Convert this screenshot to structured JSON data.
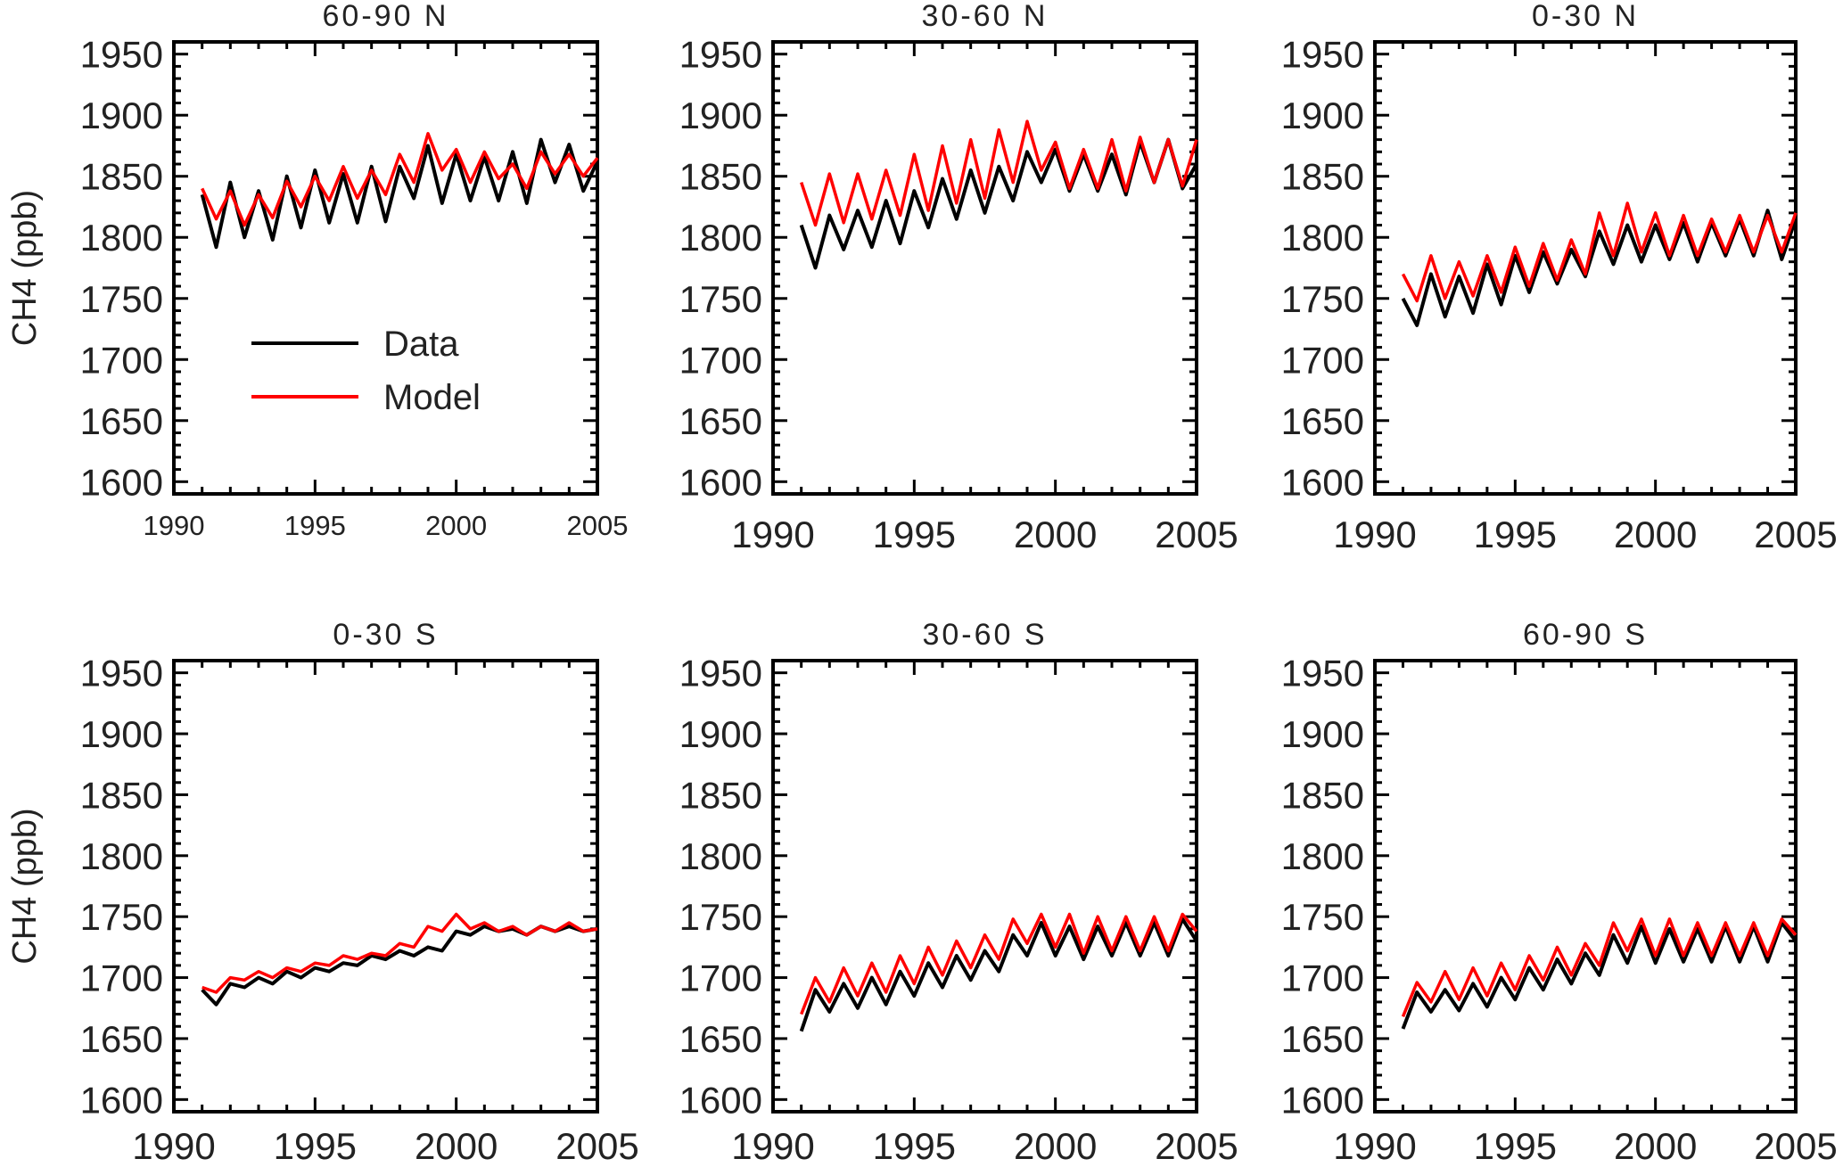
{
  "chart_data": [
    {
      "type": "line",
      "title": "60-90 N",
      "ylabel": "CH4 (ppb)",
      "xlim": [
        1990,
        2005
      ],
      "ylim": [
        1590,
        1960
      ],
      "xticks": [
        "1990",
        "1995",
        "2000",
        "2005"
      ],
      "yticks": [
        "1600",
        "1650",
        "1700",
        "1750",
        "1800",
        "1850",
        "1900",
        "1950"
      ],
      "x_start": 1991,
      "x_step": 0.5,
      "legend": {
        "placement": "center-left",
        "entries": [
          "Data",
          "Model"
        ]
      },
      "series": [
        {
          "name": "Data",
          "color": "#000000",
          "values": [
            1835,
            1792,
            1845,
            1800,
            1838,
            1798,
            1850,
            1808,
            1855,
            1812,
            1852,
            1812,
            1858,
            1813,
            1858,
            1832,
            1875,
            1828,
            1868,
            1830,
            1866,
            1830,
            1870,
            1828,
            1880,
            1845,
            1876,
            1838,
            1862
          ]
        },
        {
          "name": "Model",
          "color": "#ff0000",
          "values": [
            1840,
            1815,
            1838,
            1810,
            1835,
            1816,
            1846,
            1825,
            1850,
            1830,
            1858,
            1832,
            1855,
            1835,
            1868,
            1845,
            1885,
            1855,
            1872,
            1845,
            1870,
            1848,
            1860,
            1840,
            1870,
            1852,
            1868,
            1850,
            1865
          ]
        }
      ]
    },
    {
      "type": "line",
      "title": "30-60 N",
      "ylabel": "",
      "xlim": [
        1990,
        2005
      ],
      "ylim": [
        1590,
        1960
      ],
      "xticks": [
        "1990",
        "1995",
        "2000",
        "2005"
      ],
      "yticks": [
        "1600",
        "1650",
        "1700",
        "1750",
        "1800",
        "1850",
        "1900",
        "1950"
      ],
      "x_start": 1991,
      "x_step": 0.5,
      "series": [
        {
          "name": "Data",
          "color": "#000000",
          "values": [
            1810,
            1775,
            1818,
            1790,
            1822,
            1792,
            1830,
            1795,
            1838,
            1808,
            1848,
            1815,
            1855,
            1820,
            1858,
            1830,
            1870,
            1845,
            1872,
            1838,
            1868,
            1838,
            1868,
            1835,
            1878,
            1845,
            1880,
            1840,
            1860
          ]
        },
        {
          "name": "Model",
          "color": "#ff0000",
          "values": [
            1845,
            1810,
            1852,
            1812,
            1852,
            1815,
            1855,
            1818,
            1868,
            1822,
            1875,
            1828,
            1880,
            1832,
            1888,
            1845,
            1895,
            1855,
            1878,
            1840,
            1872,
            1840,
            1880,
            1838,
            1882,
            1845,
            1880,
            1842,
            1880
          ]
        }
      ]
    },
    {
      "type": "line",
      "title": "0-30 N",
      "ylabel": "",
      "xlim": [
        1990,
        2005
      ],
      "ylim": [
        1590,
        1960
      ],
      "xticks": [
        "1990",
        "1995",
        "2000",
        "2005"
      ],
      "yticks": [
        "1600",
        "1650",
        "1700",
        "1750",
        "1800",
        "1850",
        "1900",
        "1950"
      ],
      "x_start": 1991,
      "x_step": 0.5,
      "series": [
        {
          "name": "Data",
          "color": "#000000",
          "values": [
            1750,
            1728,
            1770,
            1735,
            1768,
            1738,
            1778,
            1745,
            1785,
            1755,
            1788,
            1762,
            1790,
            1768,
            1805,
            1778,
            1810,
            1780,
            1810,
            1782,
            1812,
            1780,
            1812,
            1785,
            1815,
            1785,
            1822,
            1782,
            1815
          ]
        },
        {
          "name": "Model",
          "color": "#ff0000",
          "values": [
            1770,
            1748,
            1785,
            1750,
            1780,
            1752,
            1785,
            1755,
            1792,
            1760,
            1795,
            1765,
            1798,
            1770,
            1820,
            1785,
            1828,
            1788,
            1820,
            1785,
            1818,
            1785,
            1815,
            1788,
            1818,
            1788,
            1818,
            1788,
            1820
          ]
        }
      ]
    },
    {
      "type": "line",
      "title": "0-30 S",
      "ylabel": "CH4 (ppb)",
      "xlim": [
        1990,
        2005
      ],
      "ylim": [
        1590,
        1960
      ],
      "xticks": [
        "1990",
        "1995",
        "2000",
        "2005"
      ],
      "yticks": [
        "1600",
        "1650",
        "1700",
        "1750",
        "1800",
        "1850",
        "1900",
        "1950"
      ],
      "x_start": 1991,
      "x_step": 0.5,
      "series": [
        {
          "name": "Data",
          "color": "#000000",
          "values": [
            1690,
            1678,
            1695,
            1692,
            1700,
            1695,
            1705,
            1700,
            1708,
            1705,
            1712,
            1710,
            1718,
            1715,
            1722,
            1718,
            1725,
            1722,
            1738,
            1735,
            1742,
            1738,
            1740,
            1735,
            1742,
            1738,
            1742,
            1738,
            1740
          ]
        },
        {
          "name": "Model",
          "color": "#ff0000",
          "values": [
            1692,
            1688,
            1700,
            1698,
            1705,
            1700,
            1708,
            1705,
            1712,
            1710,
            1718,
            1715,
            1720,
            1718,
            1728,
            1725,
            1742,
            1738,
            1752,
            1740,
            1745,
            1738,
            1742,
            1735,
            1742,
            1738,
            1745,
            1738,
            1740
          ]
        }
      ]
    },
    {
      "type": "line",
      "title": "30-60 S",
      "ylabel": "",
      "xlim": [
        1990,
        2005
      ],
      "ylim": [
        1590,
        1960
      ],
      "xticks": [
        "1990",
        "1995",
        "2000",
        "2005"
      ],
      "yticks": [
        "1600",
        "1650",
        "1700",
        "1750",
        "1800",
        "1850",
        "1900",
        "1950"
      ],
      "x_start": 1991,
      "x_step": 0.5,
      "series": [
        {
          "name": "Data",
          "color": "#000000",
          "values": [
            1656,
            1690,
            1672,
            1695,
            1675,
            1700,
            1678,
            1705,
            1685,
            1712,
            1692,
            1718,
            1698,
            1722,
            1705,
            1735,
            1718,
            1745,
            1718,
            1742,
            1715,
            1742,
            1718,
            1745,
            1718,
            1745,
            1718,
            1748,
            1730
          ]
        },
        {
          "name": "Model",
          "color": "#ff0000",
          "values": [
            1670,
            1700,
            1680,
            1708,
            1685,
            1712,
            1688,
            1718,
            1695,
            1725,
            1702,
            1730,
            1708,
            1735,
            1715,
            1748,
            1728,
            1752,
            1725,
            1752,
            1720,
            1750,
            1722,
            1750,
            1722,
            1750,
            1722,
            1752,
            1738
          ]
        }
      ]
    },
    {
      "type": "line",
      "title": "60-90 S",
      "ylabel": "",
      "xlim": [
        1990,
        2005
      ],
      "ylim": [
        1590,
        1960
      ],
      "xticks": [
        "1990",
        "1995",
        "2000",
        "2005"
      ],
      "yticks": [
        "1600",
        "1650",
        "1700",
        "1750",
        "1800",
        "1850",
        "1900",
        "1950"
      ],
      "x_start": 1991,
      "x_step": 0.5,
      "series": [
        {
          "name": "Data",
          "color": "#000000",
          "values": [
            1658,
            1688,
            1672,
            1690,
            1673,
            1695,
            1676,
            1700,
            1682,
            1708,
            1690,
            1715,
            1695,
            1720,
            1702,
            1735,
            1712,
            1742,
            1712,
            1740,
            1713,
            1740,
            1713,
            1742,
            1713,
            1742,
            1713,
            1745,
            1730
          ]
        },
        {
          "name": "Model",
          "color": "#ff0000",
          "values": [
            1668,
            1696,
            1680,
            1705,
            1682,
            1708,
            1685,
            1712,
            1690,
            1718,
            1698,
            1725,
            1702,
            1728,
            1710,
            1745,
            1722,
            1748,
            1718,
            1748,
            1718,
            1745,
            1718,
            1745,
            1718,
            1745,
            1718,
            1748,
            1735
          ]
        }
      ]
    }
  ]
}
